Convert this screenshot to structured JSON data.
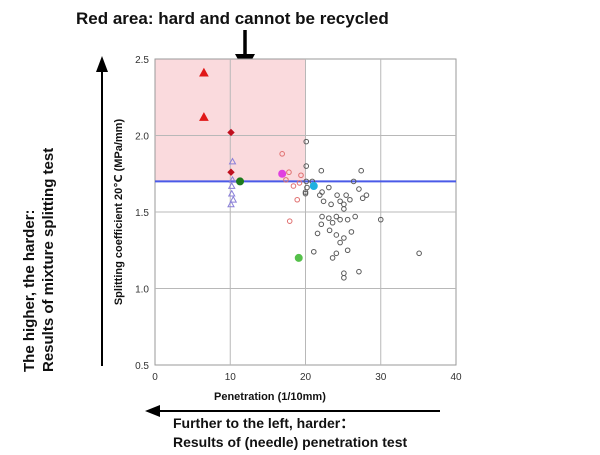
{
  "annotations": {
    "top": "Red area: hard and cannot be recycled",
    "left_line1": "The higher, the harder:",
    "left_line2": "Results of mixture splitting test",
    "bottom_line1": "Further to the left, harder：",
    "bottom_line2": "Results of (needle) penetration test"
  },
  "chart_data": {
    "type": "scatter",
    "title": "",
    "xlabel": "Penetration (1/10mm)",
    "ylabel": "Splitting coefficient 20℃ (MPa/mm)",
    "xlim": [
      0,
      40
    ],
    "ylim": [
      0.5,
      2.5
    ],
    "x_ticks": [
      "0",
      "10",
      "20",
      "30",
      "40"
    ],
    "y_ticks": [
      "0.5",
      "1.0",
      "1.5",
      "2.0",
      "2.5"
    ],
    "grid": true,
    "threshold": {
      "y": 1.7,
      "color": "#4a5ae8"
    },
    "hard_region": {
      "x": [
        0,
        20
      ],
      "y": [
        1.7,
        2.5
      ],
      "color": "#fadadd"
    },
    "series": [
      {
        "marker": "triangle",
        "filled": true,
        "color": "#e01818",
        "points": [
          [
            6.5,
            2.41
          ],
          [
            6.5,
            2.12
          ]
        ]
      },
      {
        "marker": "diamond",
        "filled": true,
        "color": "#c0101f",
        "points": [
          [
            10.1,
            2.02
          ],
          [
            10.1,
            1.76
          ]
        ]
      },
      {
        "marker": "triangle",
        "filled": false,
        "color": "#8a7fd8",
        "points": [
          [
            10.3,
            1.83
          ],
          [
            10.3,
            1.71
          ],
          [
            10.2,
            1.67
          ],
          [
            10.2,
            1.62
          ],
          [
            10.4,
            1.58
          ],
          [
            10.1,
            1.55
          ]
        ]
      },
      {
        "marker": "circle",
        "filled": false,
        "color": "#e07070",
        "points": [
          [
            16.9,
            1.88
          ],
          [
            17.4,
            1.71
          ],
          [
            18.4,
            1.67
          ],
          [
            18.9,
            1.58
          ],
          [
            19.2,
            1.69
          ],
          [
            17.9,
            1.44
          ],
          [
            17.8,
            1.76
          ],
          [
            19.4,
            1.74
          ]
        ]
      },
      {
        "marker": "circle",
        "filled": false,
        "color": "#5a5a5a",
        "points": [
          [
            20.1,
            1.96
          ],
          [
            20.1,
            1.8
          ],
          [
            20.1,
            1.7
          ],
          [
            20.2,
            1.66
          ],
          [
            20.0,
            1.63
          ],
          [
            20.0,
            1.62
          ],
          [
            20.9,
            1.7
          ],
          [
            22.1,
            1.77
          ],
          [
            22.2,
            1.63
          ],
          [
            22.4,
            1.57
          ],
          [
            21.9,
            1.61
          ],
          [
            23.1,
            1.66
          ],
          [
            23.4,
            1.55
          ],
          [
            24.2,
            1.61
          ],
          [
            24.6,
            1.57
          ],
          [
            25.1,
            1.55
          ],
          [
            25.4,
            1.61
          ],
          [
            25.9,
            1.58
          ],
          [
            26.4,
            1.7
          ],
          [
            27.1,
            1.65
          ],
          [
            27.6,
            1.59
          ],
          [
            27.4,
            1.77
          ],
          [
            28.1,
            1.61
          ],
          [
            22.2,
            1.47
          ],
          [
            23.1,
            1.46
          ],
          [
            23.6,
            1.43
          ],
          [
            24.1,
            1.47
          ],
          [
            24.6,
            1.45
          ],
          [
            25.6,
            1.45
          ],
          [
            26.6,
            1.47
          ],
          [
            23.2,
            1.38
          ],
          [
            24.1,
            1.35
          ],
          [
            25.1,
            1.33
          ],
          [
            26.1,
            1.37
          ],
          [
            24.6,
            1.3
          ],
          [
            25.6,
            1.25
          ],
          [
            23.6,
            1.2
          ],
          [
            21.1,
            1.24
          ],
          [
            25.1,
            1.1
          ],
          [
            25.1,
            1.07
          ],
          [
            27.1,
            1.11
          ],
          [
            30.0,
            1.45
          ],
          [
            35.1,
            1.23
          ],
          [
            21.6,
            1.36
          ],
          [
            22.1,
            1.42
          ],
          [
            24.1,
            1.23
          ],
          [
            25.1,
            1.52
          ]
        ]
      },
      {
        "marker": "circle",
        "filled": true,
        "color": "#e040e0",
        "points": [
          [
            16.9,
            1.75
          ]
        ]
      },
      {
        "marker": "circle",
        "filled": true,
        "color": "#1c7a1c",
        "points": [
          [
            11.3,
            1.7
          ]
        ]
      },
      {
        "marker": "circle",
        "filled": true,
        "color": "#1fb0e0",
        "points": [
          [
            21.1,
            1.67
          ]
        ]
      },
      {
        "marker": "circle",
        "filled": true,
        "color": "#55c04a",
        "points": [
          [
            19.1,
            1.2
          ]
        ]
      }
    ]
  }
}
